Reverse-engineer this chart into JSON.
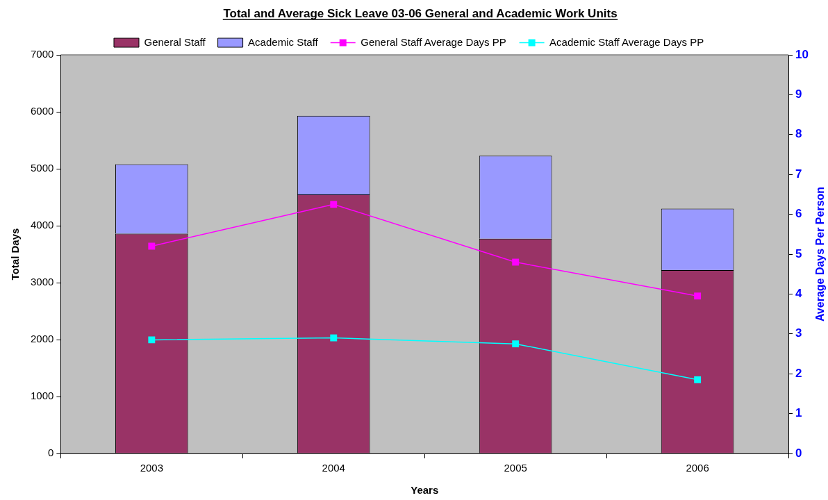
{
  "chart_data": {
    "type": "bar",
    "title": "Total and Average Sick Leave 03-06 General and Academic Work Units",
    "xlabel": "Years",
    "ylabel": "Total Days",
    "y2label": "Average Days Per Person",
    "categories": [
      "2003",
      "2004",
      "2005",
      "2006"
    ],
    "stacked": true,
    "series": [
      {
        "name": "General Staff",
        "color": "#993366",
        "values": [
          3860,
          4550,
          3770,
          3220
        ]
      },
      {
        "name": "Academic Staff",
        "color": "#9999ff",
        "values": [
          1220,
          1380,
          1460,
          1080
        ]
      },
      {
        "name": "General Staff Average Days PP",
        "type": "line",
        "axis": "y2",
        "color": "#ff00ff",
        "values": [
          5.2,
          6.25,
          4.8,
          3.95
        ]
      },
      {
        "name": "Academic Staff Average Days PP",
        "type": "line",
        "axis": "y2",
        "color": "#00ffff",
        "values": [
          2.85,
          2.9,
          2.75,
          1.85
        ]
      }
    ],
    "ylim": [
      0,
      7000
    ],
    "yticks": [
      0,
      1000,
      2000,
      3000,
      4000,
      5000,
      6000,
      7000
    ],
    "y2lim": [
      0,
      10
    ],
    "y2ticks": [
      0,
      1,
      2,
      3,
      4,
      5,
      6,
      7,
      8,
      9,
      10
    ],
    "legend": "top",
    "marker": "square",
    "line_style": "solid"
  }
}
